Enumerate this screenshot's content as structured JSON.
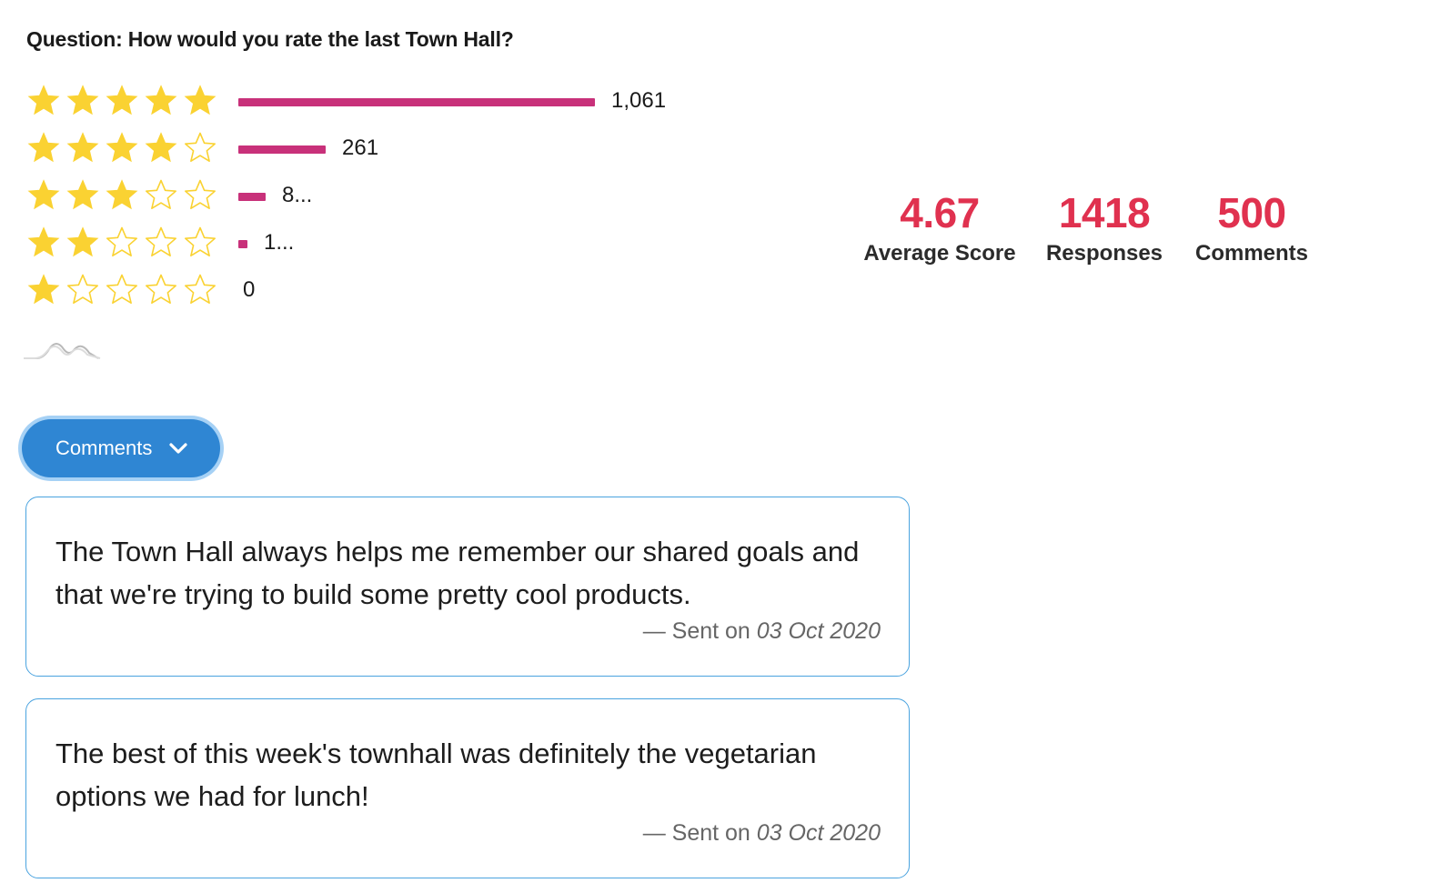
{
  "question": "Question: How would you rate the last Town Hall?",
  "colors": {
    "star": "#fad232",
    "bar": "#c8317a",
    "stat": "#e0314f",
    "button": "#2f86d3",
    "card_border": "#4aa3df"
  },
  "chart_data": {
    "type": "bar",
    "orientation": "horizontal",
    "categories": [
      "5 stars",
      "4 stars",
      "3 stars",
      "2 stars",
      "1 star"
    ],
    "series": [
      {
        "values": [
          1061,
          261,
          80,
          16,
          0
        ]
      }
    ],
    "data_labels": [
      "1,061",
      "261",
      "8...",
      "1...",
      "0"
    ],
    "stars_filled": [
      5,
      4,
      3,
      2,
      1
    ],
    "stars_max": 5,
    "xlim": [
      0,
      1061
    ]
  },
  "stats": [
    {
      "value": "4.67",
      "label": "Average Score"
    },
    {
      "value": "1418",
      "label": "Responses"
    },
    {
      "value": "500",
      "label": "Comments"
    }
  ],
  "comments_button": {
    "label": "Comments",
    "icon": "chevron-down-icon"
  },
  "comments": [
    {
      "text": "The Town Hall always helps me remember our shared goals and that we're trying to build some pretty cool products.",
      "sent_prefix": "— Sent on ",
      "date": "03 Oct 2020"
    },
    {
      "text": "The best of this week's townhall was definitely the vegetarian options we had for lunch!",
      "sent_prefix": "— Sent on ",
      "date": "03 Oct 2020"
    }
  ]
}
